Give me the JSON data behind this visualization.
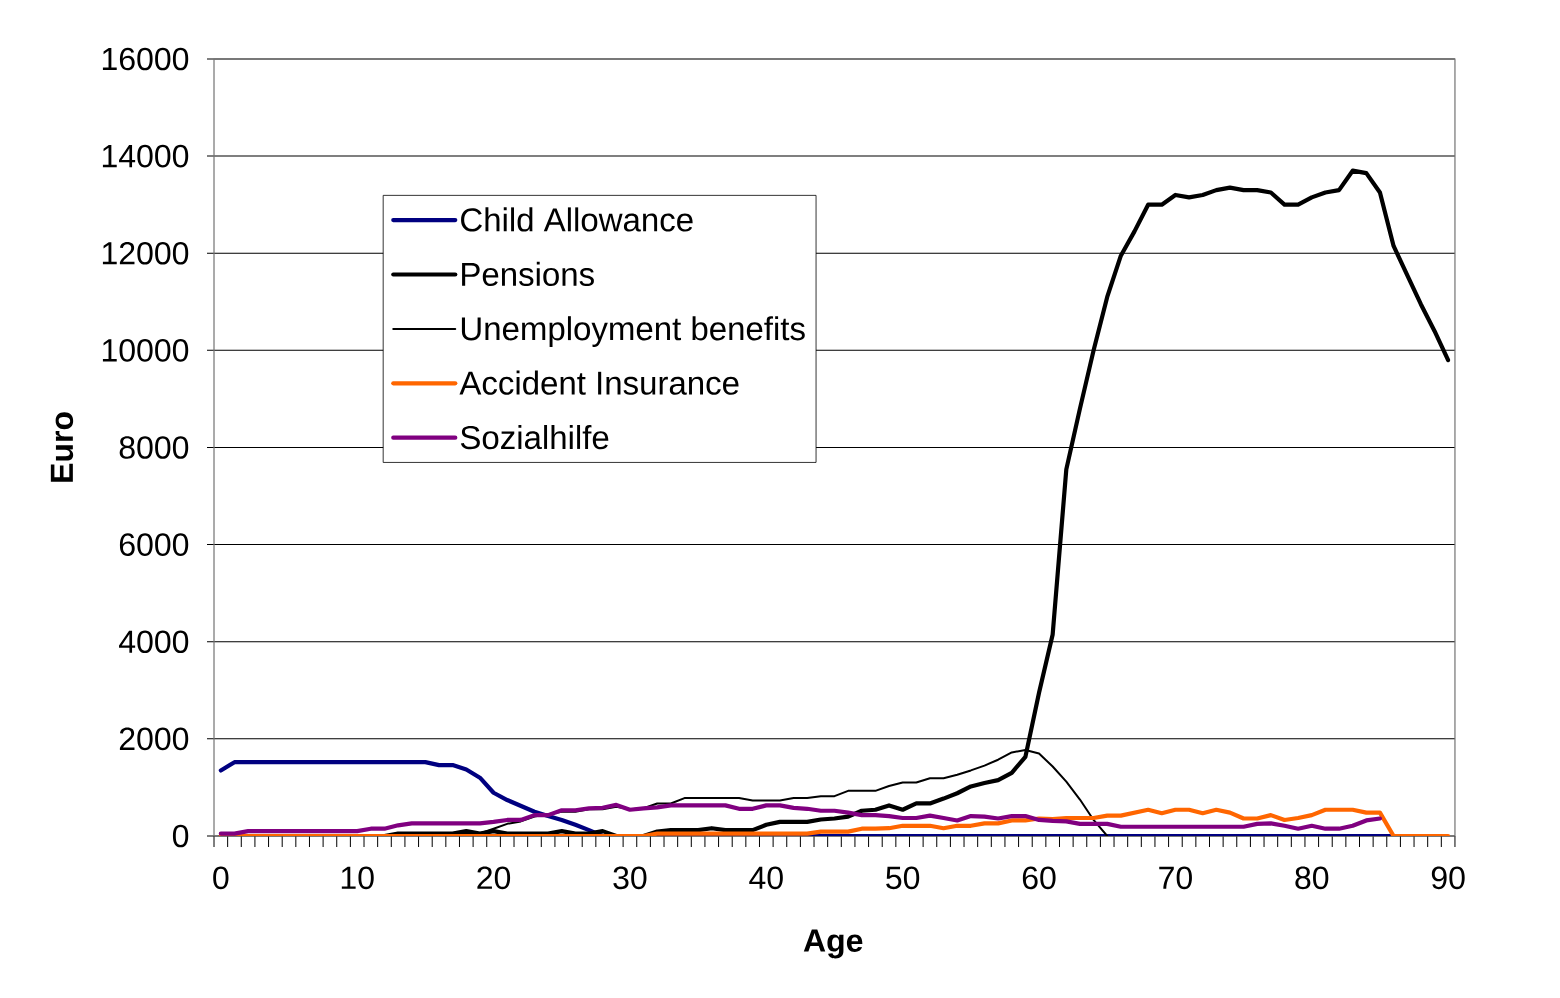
{
  "chart_data": {
    "type": "line",
    "xlabel": "Age",
    "ylabel": "Euro",
    "categories": [
      "0",
      null,
      null,
      null,
      null,
      null,
      null,
      null,
      null,
      null,
      "10",
      null,
      null,
      null,
      null,
      null,
      null,
      null,
      null,
      null,
      "20",
      null,
      null,
      null,
      null,
      null,
      null,
      null,
      null,
      null,
      "30",
      null,
      null,
      null,
      null,
      null,
      null,
      null,
      null,
      null,
      "40",
      null,
      null,
      null,
      null,
      null,
      null,
      null,
      null,
      null,
      "50",
      null,
      null,
      null,
      null,
      null,
      null,
      null,
      null,
      null,
      "60",
      null,
      null,
      null,
      null,
      null,
      null,
      null,
      null,
      null,
      "70",
      null,
      null,
      null,
      null,
      null,
      null,
      null,
      null,
      null,
      "80",
      null,
      null,
      null,
      null,
      null,
      null,
      null,
      null,
      null,
      "90"
    ],
    "ylim": [
      0,
      16000
    ],
    "yticks": [
      0,
      2000,
      4000,
      6000,
      8000,
      10000,
      12000,
      14000,
      16000
    ],
    "grid": "y",
    "legend": "top left",
    "series": [
      {
        "name": "Child Allowance",
        "color": "#000080",
        "values": [
          1350,
          1520,
          1520,
          1520,
          1520,
          1520,
          1520,
          1520,
          1520,
          1520,
          1520,
          1520,
          1520,
          1520,
          1520,
          1520,
          1460,
          1460,
          1370,
          1200,
          890,
          740,
          620,
          500,
          410,
          330,
          230,
          120,
          0,
          0,
          0,
          0,
          0,
          0,
          0,
          0,
          0,
          0,
          0,
          0,
          0,
          0,
          0,
          0,
          0,
          0,
          0,
          0,
          0,
          0,
          0,
          0,
          0,
          0,
          0,
          0,
          0,
          0,
          0,
          0,
          0,
          0,
          0,
          0,
          0,
          0,
          0,
          0,
          0,
          0,
          0,
          0,
          0,
          0,
          0,
          0,
          0,
          0,
          0,
          0,
          0,
          0,
          0,
          0,
          0,
          0,
          0,
          null,
          null,
          null,
          null
        ]
      },
      {
        "name": "Pensions",
        "color": "#000000",
        "values": [
          0,
          0,
          0,
          0,
          0,
          0,
          0,
          0,
          0,
          0,
          0,
          0,
          0,
          50,
          50,
          50,
          50,
          50,
          100,
          50,
          100,
          50,
          50,
          50,
          50,
          100,
          50,
          50,
          100,
          0,
          0,
          0,
          90,
          120,
          120,
          120,
          160,
          120,
          120,
          120,
          230,
          290,
          290,
          290,
          340,
          360,
          400,
          520,
          540,
          630,
          540,
          670,
          670,
          770,
          880,
          1020,
          1090,
          1150,
          1300,
          1630,
          2950,
          4150,
          7550,
          8800,
          10000,
          11100,
          11950,
          12450,
          13000,
          13000,
          13200,
          13150,
          13200,
          13300,
          13350,
          13300,
          13300,
          13250,
          13000,
          13000,
          13150,
          13250,
          13300,
          13700,
          13650,
          13250,
          12150,
          11550,
          10950,
          10400,
          9800
        ]
      },
      {
        "name": "Unemployment benefits",
        "color": "#000000",
        "values": [
          0,
          0,
          0,
          0,
          0,
          0,
          0,
          0,
          0,
          0,
          0,
          0,
          0,
          50,
          50,
          50,
          50,
          50,
          50,
          50,
          150,
          250,
          300,
          400,
          450,
          500,
          500,
          550,
          550,
          600,
          550,
          570,
          670,
          670,
          780,
          780,
          780,
          780,
          780,
          730,
          730,
          730,
          780,
          780,
          820,
          820,
          930,
          930,
          930,
          1030,
          1100,
          1100,
          1190,
          1190,
          1260,
          1350,
          1450,
          1570,
          1720,
          1770,
          1700,
          1430,
          1120,
          750,
          330,
          0,
          null,
          null,
          null,
          null,
          null,
          null,
          null,
          null,
          null,
          null,
          null,
          null,
          null,
          null,
          null,
          null,
          null,
          null,
          null,
          null,
          null,
          null,
          null,
          null,
          null
        ]
      },
      {
        "name": "Accident Insurance",
        "color": "#ff6600",
        "values": [
          0,
          0,
          0,
          0,
          0,
          0,
          0,
          0,
          0,
          0,
          0,
          0,
          0,
          0,
          0,
          0,
          0,
          0,
          0,
          0,
          0,
          0,
          0,
          0,
          0,
          0,
          0,
          0,
          0,
          0,
          0,
          0,
          50,
          50,
          50,
          50,
          50,
          50,
          50,
          50,
          50,
          50,
          50,
          50,
          90,
          90,
          90,
          150,
          150,
          160,
          210,
          210,
          210,
          160,
          210,
          210,
          260,
          260,
          320,
          320,
          360,
          350,
          370,
          370,
          370,
          420,
          420,
          480,
          540,
          470,
          540,
          540,
          470,
          540,
          480,
          360,
          360,
          430,
          330,
          370,
          430,
          540,
          540,
          540,
          480,
          480,
          0,
          0,
          0,
          0,
          0
        ]
      },
      {
        "name": "Sozialhilfe",
        "color": "#800080",
        "values": [
          50,
          50,
          100,
          100,
          100,
          100,
          100,
          100,
          100,
          100,
          100,
          150,
          150,
          220,
          260,
          260,
          260,
          260,
          260,
          260,
          290,
          330,
          330,
          430,
          430,
          530,
          530,
          570,
          580,
          640,
          540,
          570,
          590,
          630,
          630,
          630,
          630,
          630,
          560,
          560,
          630,
          630,
          580,
          560,
          520,
          520,
          480,
          430,
          430,
          410,
          370,
          370,
          420,
          370,
          320,
          410,
          400,
          360,
          410,
          410,
          330,
          310,
          300,
          250,
          250,
          250,
          190,
          190,
          190,
          190,
          190,
          190,
          190,
          190,
          190,
          190,
          250,
          260,
          210,
          150,
          210,
          150,
          150,
          210,
          320,
          360,
          null,
          null,
          null,
          null,
          null
        ]
      }
    ]
  }
}
